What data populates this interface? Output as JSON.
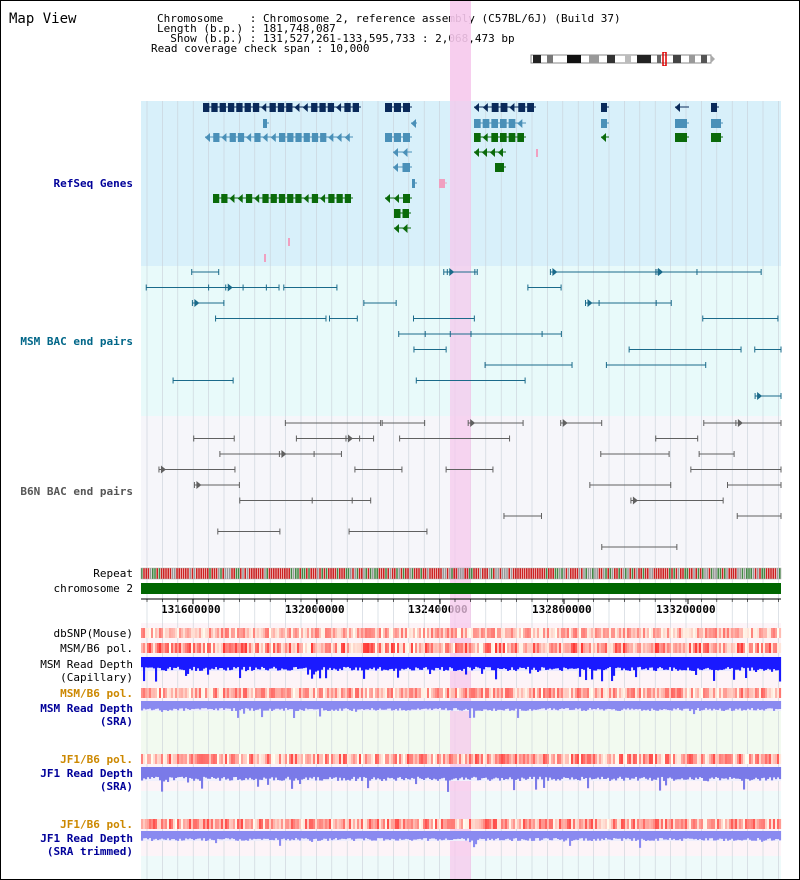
{
  "title": "Map View",
  "info": {
    "chromosome_label": "Chromosome    : Chromosome 2, reference assembly (C57BL/6J) (Build 37)",
    "length_label": "Length (b.p.) : 181,748,087",
    "show_label": "  Show (b.p.) : 131,527,261-133,595,733 : 2,068,473 bp",
    "coverage_label": "Read coverage check span : 10,000"
  },
  "tracks": {
    "refseq": "RefSeq Genes",
    "msm_bac": "MSM BAC end pairs",
    "b6n_bac": "B6N BAC end pairs",
    "repeat": "Repeat",
    "chromosome": "chromosome 2",
    "dbsnp": "dbSNP(Mouse)",
    "msm_b6_pol_1": "MSM/B6 pol.",
    "msm_depth_cap_1": "MSM Read Depth",
    "msm_depth_cap_2": "(Capillary)",
    "msm_b6_pol_2": "MSM/B6 pol.",
    "msm_depth_sra_1": "MSM Read Depth",
    "msm_depth_sra_2": "(SRA)",
    "jf1_b6_pol_1": "JF1/B6 pol.",
    "jf1_depth_sra_1": "JF1 Read Depth",
    "jf1_depth_sra_2": "(SRA)",
    "jf1_b6_pol_2": "JF1/B6 pol.",
    "jf1_depth_trim_1": "JF1 Read Depth",
    "jf1_depth_trim_2": "(SRA trimmed)"
  },
  "axis": {
    "ticks": [
      "131600000",
      "132000000",
      "132400000",
      "132800000",
      "133200000"
    ]
  },
  "colors": {
    "refseq_bg": "#d8f0fa",
    "msm_bg": "#e8fafa",
    "b6n_bg": "#f6f6fa",
    "gene_navy": "#0a2a5a",
    "gene_blue": "#4a90b8",
    "gene_green": "#0a6a0a",
    "gene_pink": "#f0a0c0",
    "msm_line": "#1a6a8a",
    "b6n_line": "#606060",
    "chromosome": "#006600",
    "highlight": "#f6c8ec",
    "label_blue": "#000099",
    "label_orange": "#cc8800",
    "label_teal": "#006688"
  }
}
